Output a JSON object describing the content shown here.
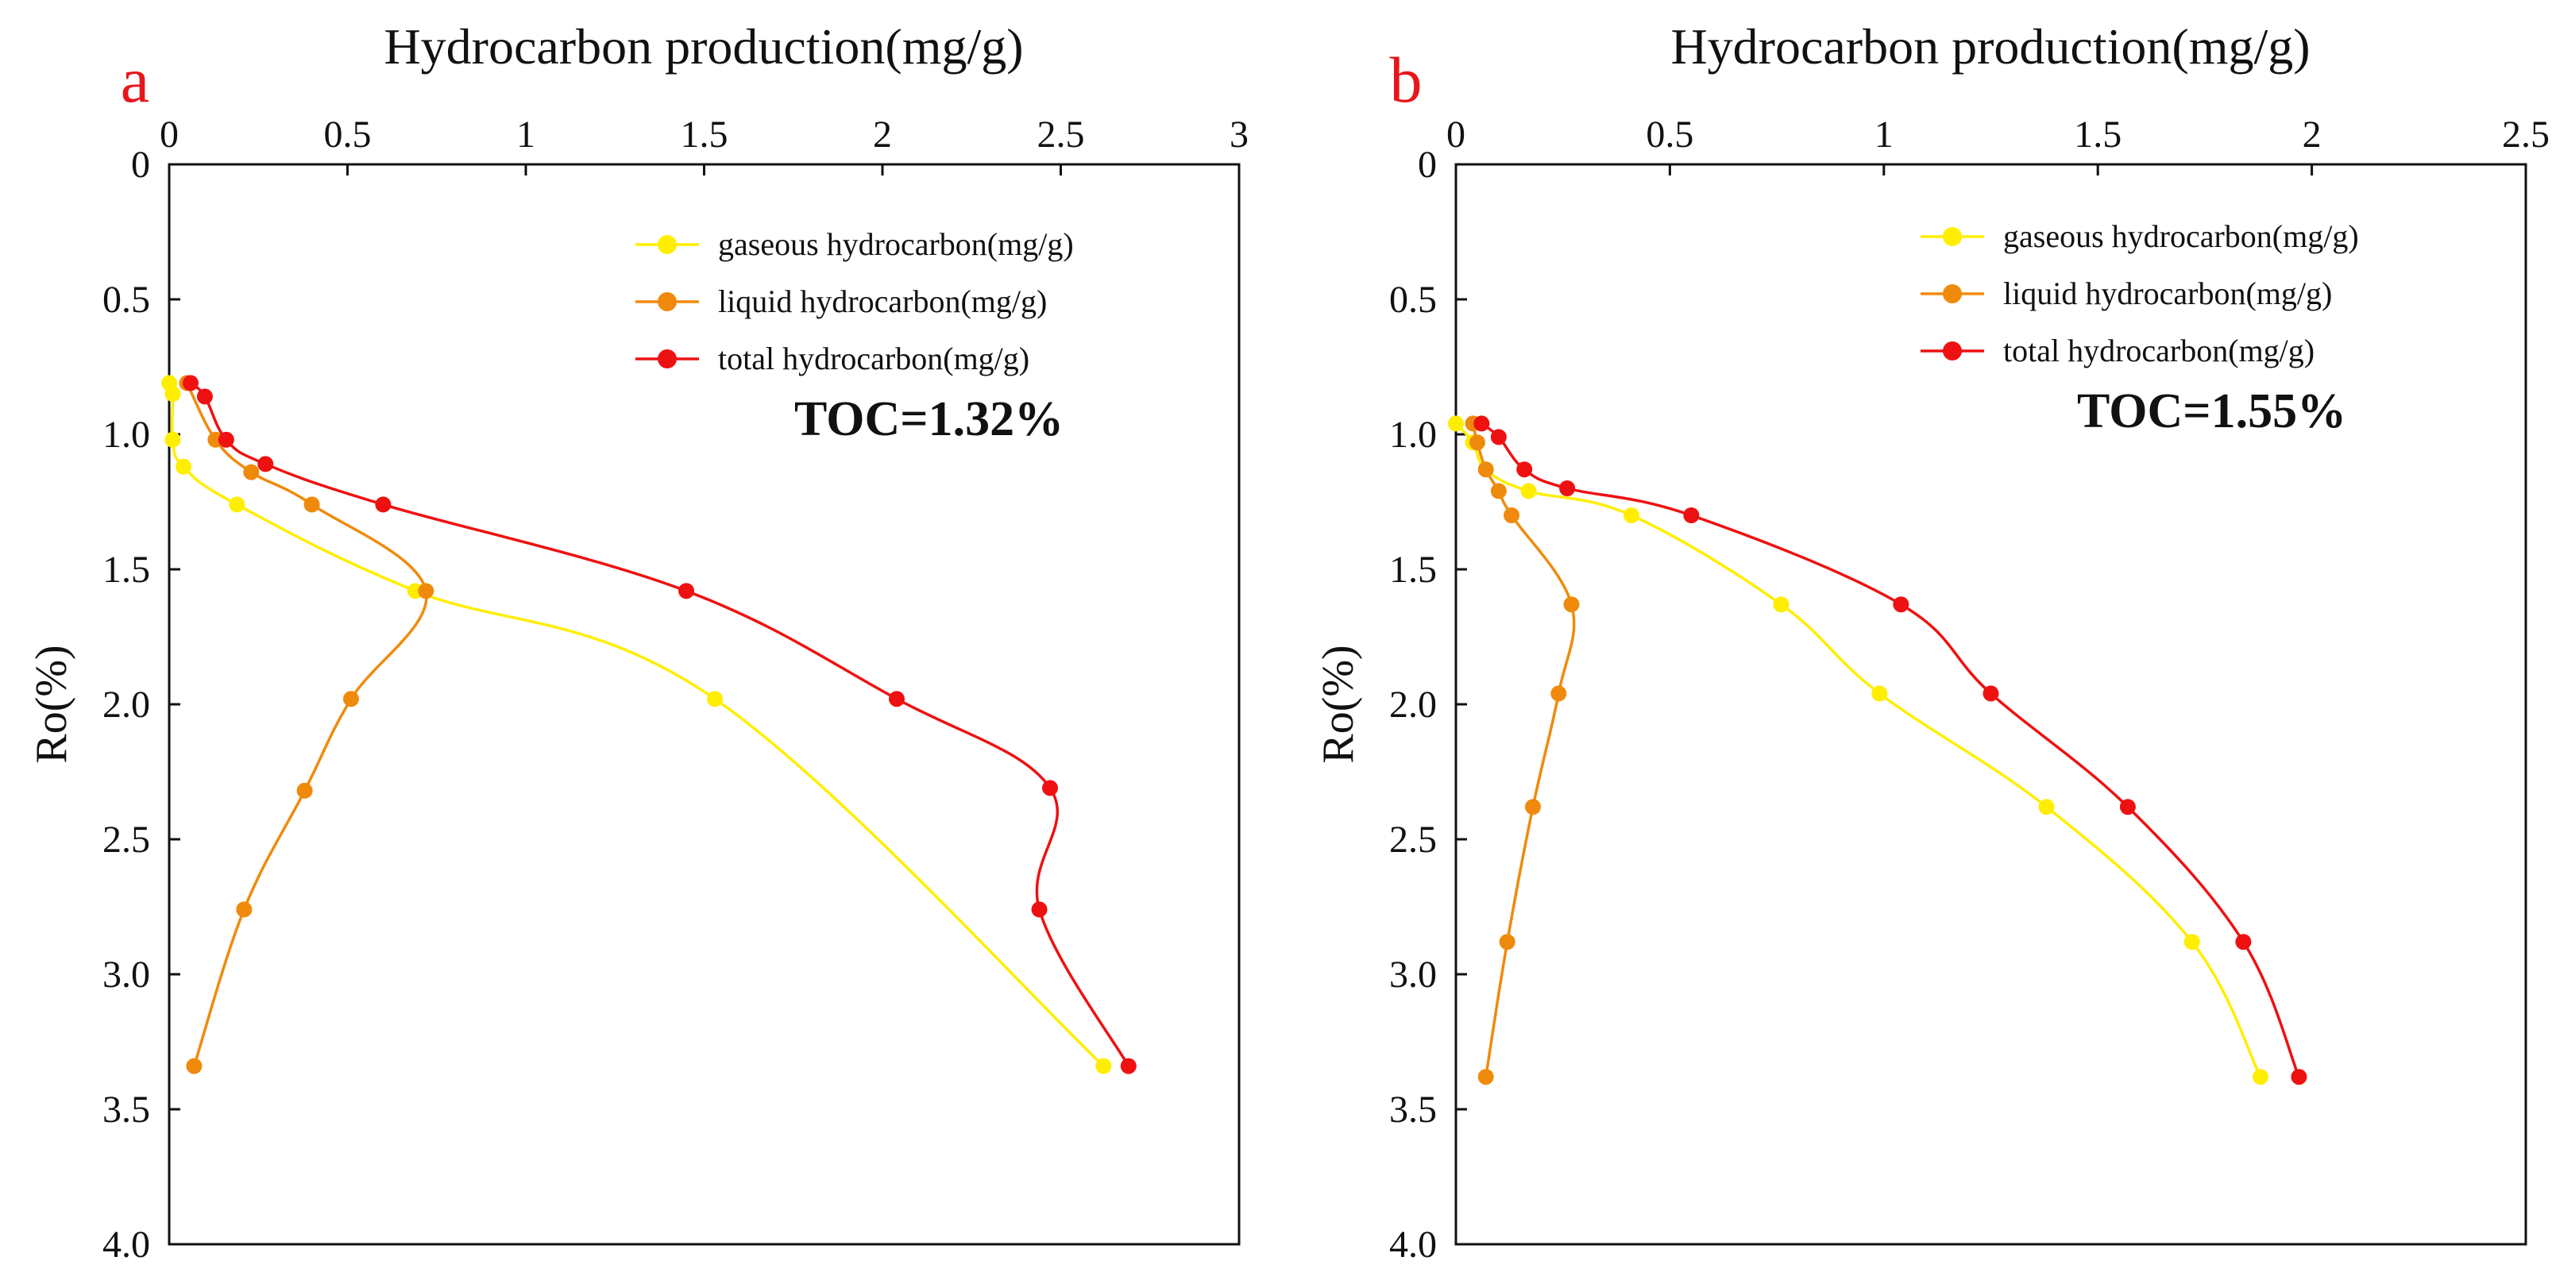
{
  "chart_data": [
    {
      "panel_label": "a",
      "type": "line",
      "title": "Hydrocarbon production(mg/g)",
      "xlabel": "Hydrocarbon production(mg/g)",
      "ylabel": "Ro(%)",
      "xlim": [
        0,
        3
      ],
      "ylim": [
        0,
        4.0
      ],
      "y_inverted": true,
      "x_axis_position": "top",
      "x_ticks": [
        "0",
        "0.5",
        "1",
        "1.5",
        "2",
        "2.5",
        "3"
      ],
      "y_ticks": [
        "0",
        "0.5",
        "1.0",
        "1.5",
        "2.0",
        "2.5",
        "3.0",
        "3.5",
        "4.0"
      ],
      "annotation": "TOC=1.32%",
      "legend_position": "top-right",
      "series": [
        {
          "name": "gaseous hydrocarbon(mg/g)",
          "color": "#ffee00",
          "points": [
            [
              0.0,
              0.81
            ],
            [
              0.01,
              0.85
            ],
            [
              0.01,
              1.02
            ],
            [
              0.04,
              1.12
            ],
            [
              0.19,
              1.26
            ],
            [
              0.69,
              1.58
            ],
            [
              1.53,
              1.98
            ],
            [
              2.62,
              3.34
            ]
          ]
        },
        {
          "name": "liquid hydrocarbon(mg/g)",
          "color": "#f08a0c",
          "points": [
            [
              0.05,
              0.81
            ],
            [
              0.13,
              1.02
            ],
            [
              0.23,
              1.14
            ],
            [
              0.4,
              1.26
            ],
            [
              0.72,
              1.58
            ],
            [
              0.51,
              1.98
            ],
            [
              0.38,
              2.32
            ],
            [
              0.21,
              2.76
            ],
            [
              0.07,
              3.34
            ]
          ]
        },
        {
          "name": "total hydrocarbon(mg/g)",
          "color": "#ee1111",
          "points": [
            [
              0.06,
              0.81
            ],
            [
              0.1,
              0.86
            ],
            [
              0.16,
              1.02
            ],
            [
              0.27,
              1.11
            ],
            [
              0.6,
              1.26
            ],
            [
              1.45,
              1.58
            ],
            [
              2.04,
              1.98
            ],
            [
              2.47,
              2.31
            ],
            [
              2.44,
              2.76
            ],
            [
              2.69,
              3.34
            ]
          ]
        }
      ]
    },
    {
      "panel_label": "b",
      "type": "line",
      "title": "Hydrocarbon production(mg/g)",
      "xlabel": "Hydrocarbon production(mg/g)",
      "ylabel": "Ro(%)",
      "xlim": [
        0,
        2.5
      ],
      "ylim": [
        0,
        4.0
      ],
      "y_inverted": true,
      "x_axis_position": "top",
      "x_ticks": [
        "0",
        "0.5",
        "1",
        "1.5",
        "2",
        "2.5"
      ],
      "y_ticks": [
        "0",
        "0.5",
        "1.0",
        "1.5",
        "2.0",
        "2.5",
        "3.0",
        "3.5",
        "4.0"
      ],
      "annotation": "TOC=1.55%",
      "legend_position": "top-right",
      "series": [
        {
          "name": "gaseous hydrocarbon(mg/g)",
          "color": "#ffee00",
          "points": [
            [
              0.0,
              0.96
            ],
            [
              0.04,
              1.03
            ],
            [
              0.07,
              1.13
            ],
            [
              0.17,
              1.21
            ],
            [
              0.41,
              1.3
            ],
            [
              0.76,
              1.63
            ],
            [
              0.99,
              1.96
            ],
            [
              1.38,
              2.38
            ],
            [
              1.72,
              2.88
            ],
            [
              1.88,
              3.38
            ]
          ]
        },
        {
          "name": "liquid hydrocarbon(mg/g)",
          "color": "#f08a0c",
          "points": [
            [
              0.04,
              0.96
            ],
            [
              0.05,
              1.03
            ],
            [
              0.07,
              1.13
            ],
            [
              0.1,
              1.21
            ],
            [
              0.13,
              1.3
            ],
            [
              0.27,
              1.63
            ],
            [
              0.24,
              1.96
            ],
            [
              0.18,
              2.38
            ],
            [
              0.12,
              2.88
            ],
            [
              0.07,
              3.38
            ]
          ]
        },
        {
          "name": "total hydrocarbon(mg/g)",
          "color": "#ee1111",
          "points": [
            [
              0.06,
              0.96
            ],
            [
              0.1,
              1.01
            ],
            [
              0.16,
              1.13
            ],
            [
              0.26,
              1.2
            ],
            [
              0.55,
              1.3
            ],
            [
              1.04,
              1.63
            ],
            [
              1.25,
              1.96
            ],
            [
              1.57,
              2.38
            ],
            [
              1.84,
              2.88
            ],
            [
              1.97,
              3.38
            ]
          ]
        }
      ]
    }
  ]
}
